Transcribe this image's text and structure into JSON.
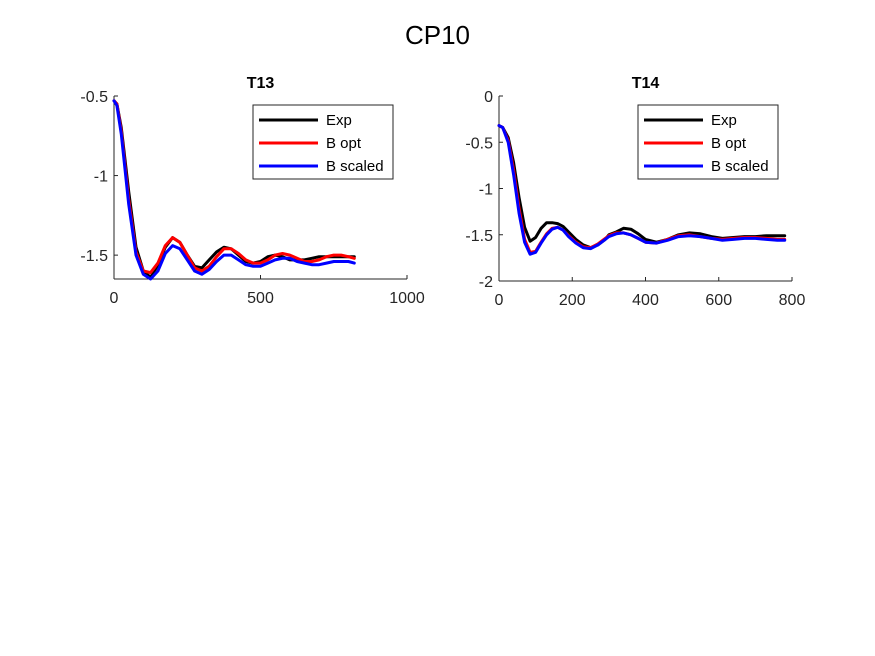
{
  "figure": {
    "title": "CP10"
  },
  "chart_data": [
    {
      "type": "line",
      "title": "T13",
      "xlabel": "",
      "ylabel": "",
      "xlim": [
        0,
        1000
      ],
      "ylim": [
        -1.65,
        -0.5
      ],
      "xticks": [
        0,
        500,
        1000
      ],
      "xtick_labels": [
        "0",
        "500",
        "1000"
      ],
      "yticks": [
        -0.5,
        -1,
        -1.5
      ],
      "ytick_labels": [
        "-0.5",
        "-1",
        "-1.5"
      ],
      "grid": false,
      "legend": "top-right",
      "series": [
        {
          "name": "Exp",
          "color": "#000000",
          "x": [
            0,
            10,
            25,
            50,
            75,
            100,
            125,
            150,
            175,
            200,
            225,
            250,
            275,
            300,
            325,
            350,
            375,
            400,
            425,
            450,
            475,
            500,
            525,
            550,
            575,
            600,
            625,
            650,
            675,
            700,
            725,
            750,
            775,
            800,
            820
          ],
          "y": [
            -0.53,
            -0.55,
            -0.7,
            -1.1,
            -1.45,
            -1.6,
            -1.64,
            -1.56,
            -1.45,
            -1.39,
            -1.42,
            -1.5,
            -1.57,
            -1.58,
            -1.53,
            -1.48,
            -1.45,
            -1.46,
            -1.5,
            -1.54,
            -1.55,
            -1.54,
            -1.51,
            -1.5,
            -1.51,
            -1.53,
            -1.53,
            -1.53,
            -1.52,
            -1.51,
            -1.51,
            -1.51,
            -1.51,
            -1.51,
            -1.51
          ]
        },
        {
          "name": "B opt",
          "color": "#ff0000",
          "x": [
            0,
            10,
            25,
            50,
            75,
            100,
            125,
            150,
            175,
            200,
            225,
            250,
            275,
            300,
            325,
            350,
            375,
            400,
            425,
            450,
            475,
            500,
            525,
            550,
            575,
            600,
            625,
            650,
            675,
            700,
            725,
            750,
            775,
            800,
            820
          ],
          "y": [
            -0.53,
            -0.55,
            -0.72,
            -1.15,
            -1.48,
            -1.6,
            -1.61,
            -1.55,
            -1.44,
            -1.39,
            -1.42,
            -1.5,
            -1.58,
            -1.6,
            -1.57,
            -1.51,
            -1.46,
            -1.46,
            -1.49,
            -1.53,
            -1.55,
            -1.55,
            -1.53,
            -1.5,
            -1.49,
            -1.5,
            -1.52,
            -1.54,
            -1.54,
            -1.53,
            -1.51,
            -1.5,
            -1.5,
            -1.51,
            -1.52
          ]
        },
        {
          "name": "B scaled",
          "color": "#0000ff",
          "x": [
            0,
            10,
            25,
            50,
            75,
            100,
            125,
            150,
            175,
            200,
            225,
            250,
            275,
            300,
            325,
            350,
            375,
            400,
            425,
            450,
            475,
            500,
            525,
            550,
            575,
            600,
            625,
            650,
            675,
            700,
            725,
            750,
            775,
            800,
            820
          ],
          "y": [
            -0.53,
            -0.56,
            -0.74,
            -1.18,
            -1.5,
            -1.62,
            -1.65,
            -1.6,
            -1.49,
            -1.44,
            -1.46,
            -1.53,
            -1.6,
            -1.62,
            -1.59,
            -1.54,
            -1.5,
            -1.5,
            -1.53,
            -1.56,
            -1.57,
            -1.57,
            -1.55,
            -1.53,
            -1.52,
            -1.52,
            -1.54,
            -1.55,
            -1.56,
            -1.56,
            -1.55,
            -1.54,
            -1.54,
            -1.54,
            -1.55
          ]
        }
      ]
    },
    {
      "type": "line",
      "title": "T14",
      "xlabel": "",
      "ylabel": "",
      "xlim": [
        0,
        800
      ],
      "ylim": [
        -2,
        0
      ],
      "xticks": [
        0,
        200,
        400,
        600,
        800
      ],
      "xtick_labels": [
        "0",
        "200",
        "400",
        "600",
        "800"
      ],
      "yticks": [
        0,
        -0.5,
        -1,
        -1.5,
        -2
      ],
      "ytick_labels": [
        "0",
        "-0.5",
        "-1",
        "-1.5",
        "-2"
      ],
      "grid": false,
      "legend": "top-right",
      "series": [
        {
          "name": "Exp",
          "color": "#000000",
          "x": [
            0,
            10,
            25,
            40,
            55,
            70,
            85,
            100,
            115,
            130,
            145,
            160,
            175,
            190,
            210,
            230,
            250,
            270,
            290,
            300,
            320,
            340,
            360,
            380,
            400,
            430,
            460,
            490,
            520,
            550,
            580,
            610,
            640,
            670,
            700,
            730,
            760,
            780
          ],
          "y": [
            -0.32,
            -0.34,
            -0.45,
            -0.72,
            -1.1,
            -1.42,
            -1.57,
            -1.53,
            -1.43,
            -1.37,
            -1.37,
            -1.38,
            -1.41,
            -1.47,
            -1.55,
            -1.61,
            -1.64,
            -1.61,
            -1.55,
            -1.5,
            -1.47,
            -1.43,
            -1.44,
            -1.49,
            -1.55,
            -1.58,
            -1.55,
            -1.5,
            -1.48,
            -1.49,
            -1.52,
            -1.54,
            -1.53,
            -1.52,
            -1.52,
            -1.51,
            -1.51,
            -1.51
          ]
        },
        {
          "name": "B opt",
          "color": "#ff0000",
          "x": [
            0,
            10,
            25,
            40,
            55,
            70,
            85,
            100,
            115,
            130,
            145,
            160,
            175,
            190,
            210,
            230,
            250,
            270,
            290,
            300,
            320,
            340,
            360,
            380,
            400,
            430,
            460,
            490,
            520,
            550,
            580,
            610,
            640,
            670,
            700,
            730,
            760,
            780
          ],
          "y": [
            -0.32,
            -0.34,
            -0.48,
            -0.8,
            -1.22,
            -1.55,
            -1.69,
            -1.68,
            -1.58,
            -1.49,
            -1.43,
            -1.42,
            -1.45,
            -1.51,
            -1.58,
            -1.63,
            -1.64,
            -1.6,
            -1.54,
            -1.51,
            -1.48,
            -1.48,
            -1.5,
            -1.54,
            -1.58,
            -1.59,
            -1.55,
            -1.51,
            -1.5,
            -1.52,
            -1.54,
            -1.55,
            -1.54,
            -1.53,
            -1.53,
            -1.54,
            -1.55,
            -1.55
          ]
        },
        {
          "name": "B scaled",
          "color": "#0000ff",
          "x": [
            0,
            10,
            25,
            40,
            55,
            70,
            85,
            100,
            115,
            130,
            145,
            160,
            175,
            190,
            210,
            230,
            250,
            270,
            290,
            300,
            320,
            340,
            360,
            380,
            400,
            430,
            460,
            490,
            520,
            550,
            580,
            610,
            640,
            670,
            700,
            730,
            760,
            780
          ],
          "y": [
            -0.32,
            -0.34,
            -0.5,
            -0.85,
            -1.27,
            -1.58,
            -1.71,
            -1.69,
            -1.59,
            -1.5,
            -1.44,
            -1.42,
            -1.45,
            -1.52,
            -1.59,
            -1.64,
            -1.65,
            -1.61,
            -1.55,
            -1.52,
            -1.49,
            -1.48,
            -1.5,
            -1.54,
            -1.58,
            -1.59,
            -1.56,
            -1.52,
            -1.51,
            -1.52,
            -1.54,
            -1.56,
            -1.55,
            -1.54,
            -1.54,
            -1.55,
            -1.56,
            -1.56
          ]
        }
      ]
    }
  ]
}
